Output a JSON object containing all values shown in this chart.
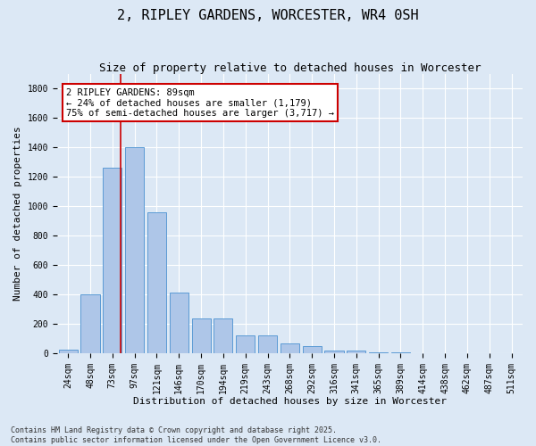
{
  "title_line1": "2, RIPLEY GARDENS, WORCESTER, WR4 0SH",
  "title_line2": "Size of property relative to detached houses in Worcester",
  "xlabel": "Distribution of detached houses by size in Worcester",
  "ylabel": "Number of detached properties",
  "categories": [
    "24sqm",
    "48sqm",
    "73sqm",
    "97sqm",
    "121sqm",
    "146sqm",
    "170sqm",
    "194sqm",
    "219sqm",
    "243sqm",
    "268sqm",
    "292sqm",
    "316sqm",
    "341sqm",
    "365sqm",
    "389sqm",
    "414sqm",
    "438sqm",
    "462sqm",
    "487sqm",
    "511sqm"
  ],
  "values": [
    25,
    400,
    1265,
    1400,
    960,
    415,
    235,
    235,
    120,
    120,
    65,
    45,
    18,
    18,
    5,
    5,
    0,
    0,
    0,
    0,
    0
  ],
  "bar_color": "#aec6e8",
  "bar_edge_color": "#5b9bd5",
  "background_color": "#dce8f5",
  "plot_bg_color": "#dce8f5",
  "grid_color": "#ffffff",
  "annotation_text": "2 RIPLEY GARDENS: 89sqm\n← 24% of detached houses are smaller (1,179)\n75% of semi-detached houses are larger (3,717) →",
  "annotation_box_facecolor": "#ffffff",
  "annotation_box_edgecolor": "#cc0000",
  "red_line_x": 2.35,
  "ylim": [
    0,
    1900
  ],
  "yticks": [
    0,
    200,
    400,
    600,
    800,
    1000,
    1200,
    1400,
    1600,
    1800
  ],
  "footnote": "Contains HM Land Registry data © Crown copyright and database right 2025.\nContains public sector information licensed under the Open Government Licence v3.0.",
  "title_fontsize": 11,
  "subtitle_fontsize": 9,
  "axis_label_fontsize": 8,
  "tick_fontsize": 7,
  "annotation_fontsize": 7.5,
  "footnote_fontsize": 6
}
